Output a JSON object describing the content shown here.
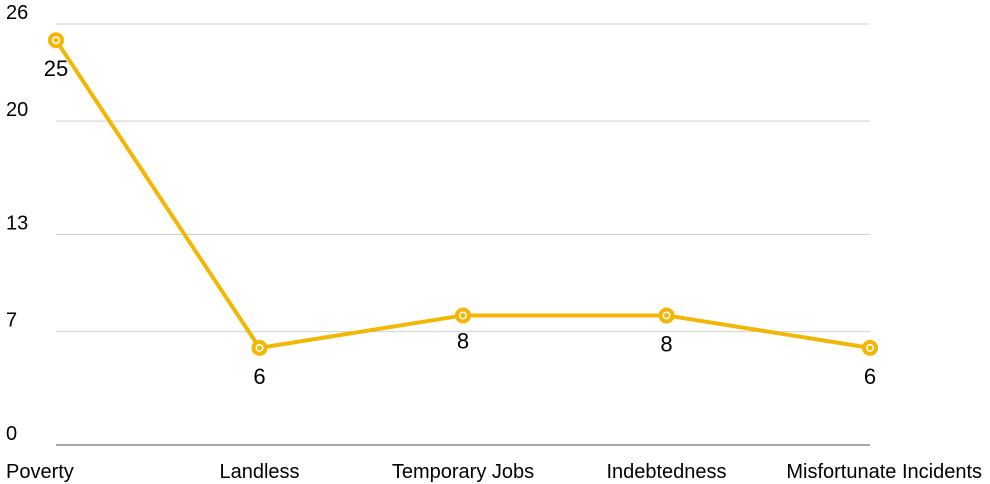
{
  "chart_data": {
    "type": "line",
    "categories": [
      "Poverty",
      "Landless",
      "Temporary Jobs",
      "Indebtedness",
      "Misfortunate Incidents"
    ],
    "series": [
      {
        "values": [
          25,
          6,
          8,
          8,
          6
        ],
        "color": "#F2B705"
      }
    ],
    "data_labels": [
      "25",
      "6",
      "8",
      "8",
      "6"
    ],
    "y_ticks": [
      0,
      7,
      13,
      20,
      26
    ],
    "ylim": [
      0,
      26
    ],
    "title": "",
    "xlabel": "",
    "ylabel": "",
    "grid": true,
    "legend": "none",
    "colors": {
      "line": "#F2B705",
      "grid": "#cfcfcf",
      "axis": "#8a8a8a",
      "text": "#000000"
    }
  }
}
